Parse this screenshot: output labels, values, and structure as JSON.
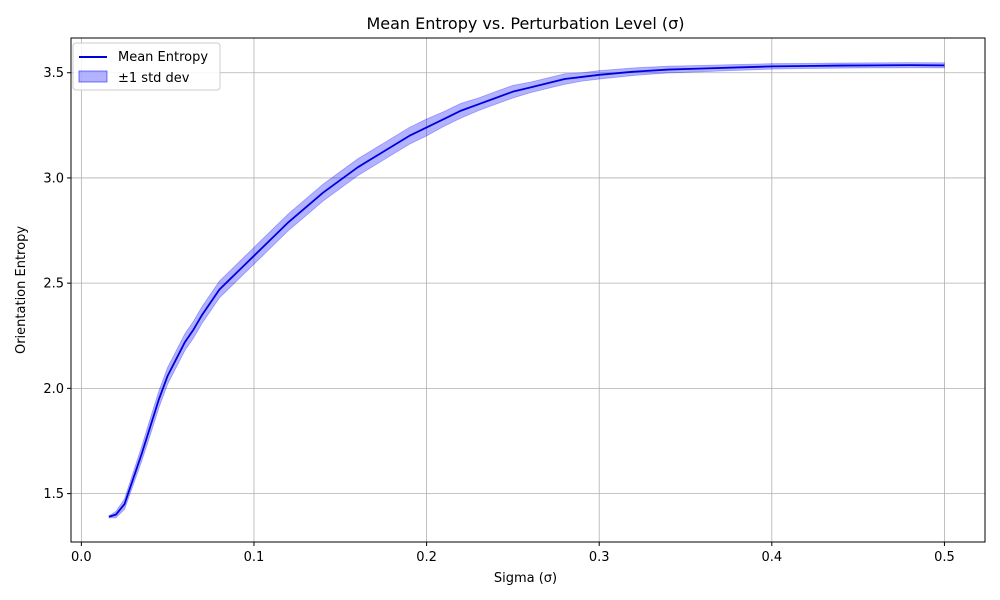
{
  "chart_data": {
    "type": "line",
    "title": "Mean Entropy vs. Perturbation Level (σ)",
    "xlabel": "Sigma (σ)",
    "ylabel": "Orientation Entropy",
    "xlim": [
      -0.006,
      0.5235
    ],
    "ylim": [
      1.27,
      3.665
    ],
    "xticks": [
      0.0,
      0.1,
      0.2,
      0.3,
      0.4,
      0.5
    ],
    "xtick_labels": [
      "0.0",
      "0.1",
      "0.2",
      "0.3",
      "0.4",
      "0.5"
    ],
    "yticks": [
      1.5,
      2.0,
      2.5,
      3.0,
      3.5
    ],
    "ytick_labels": [
      "1.5",
      "2.0",
      "2.5",
      "3.0",
      "3.5"
    ],
    "grid": true,
    "legend_position": "top-left",
    "colors": {
      "line": "#0000dd",
      "band": "#0000ff"
    },
    "series": [
      {
        "name": "Mean Entropy",
        "kind": "line",
        "x": [
          0.016,
          0.02,
          0.025,
          0.03,
          0.035,
          0.04,
          0.045,
          0.05,
          0.055,
          0.06,
          0.065,
          0.07,
          0.075,
          0.08,
          0.085,
          0.09,
          0.095,
          0.1,
          0.11,
          0.12,
          0.13,
          0.14,
          0.15,
          0.16,
          0.17,
          0.18,
          0.19,
          0.2,
          0.21,
          0.22,
          0.23,
          0.24,
          0.25,
          0.26,
          0.27,
          0.28,
          0.29,
          0.3,
          0.32,
          0.34,
          0.36,
          0.38,
          0.4,
          0.42,
          0.44,
          0.46,
          0.48,
          0.5
        ],
        "y": [
          1.39,
          1.4,
          1.45,
          1.57,
          1.69,
          1.82,
          1.95,
          2.06,
          2.14,
          2.22,
          2.28,
          2.35,
          2.41,
          2.47,
          2.51,
          2.55,
          2.59,
          2.63,
          2.71,
          2.79,
          2.86,
          2.93,
          2.99,
          3.05,
          3.1,
          3.15,
          3.2,
          3.24,
          3.28,
          3.32,
          3.35,
          3.38,
          3.41,
          3.43,
          3.45,
          3.47,
          3.48,
          3.49,
          3.505,
          3.515,
          3.52,
          3.525,
          3.53,
          3.532,
          3.534,
          3.535,
          3.536,
          3.535
        ]
      },
      {
        "name": "±1 std dev",
        "kind": "band",
        "x": [
          0.016,
          0.02,
          0.025,
          0.03,
          0.035,
          0.04,
          0.045,
          0.05,
          0.055,
          0.06,
          0.065,
          0.07,
          0.075,
          0.08,
          0.085,
          0.09,
          0.095,
          0.1,
          0.11,
          0.12,
          0.13,
          0.14,
          0.15,
          0.16,
          0.17,
          0.18,
          0.19,
          0.2,
          0.21,
          0.22,
          0.23,
          0.24,
          0.25,
          0.26,
          0.27,
          0.28,
          0.29,
          0.3,
          0.32,
          0.34,
          0.36,
          0.38,
          0.4,
          0.42,
          0.44,
          0.46,
          0.48,
          0.5
        ],
        "std": [
          0.005,
          0.015,
          0.025,
          0.03,
          0.035,
          0.04,
          0.04,
          0.04,
          0.04,
          0.04,
          0.04,
          0.04,
          0.04,
          0.04,
          0.04,
          0.04,
          0.04,
          0.04,
          0.04,
          0.04,
          0.04,
          0.04,
          0.04,
          0.04,
          0.04,
          0.04,
          0.04,
          0.04,
          0.035,
          0.035,
          0.03,
          0.03,
          0.03,
          0.025,
          0.025,
          0.025,
          0.02,
          0.02,
          0.018,
          0.016,
          0.015,
          0.014,
          0.013,
          0.012,
          0.012,
          0.012,
          0.012,
          0.012
        ]
      }
    ]
  }
}
